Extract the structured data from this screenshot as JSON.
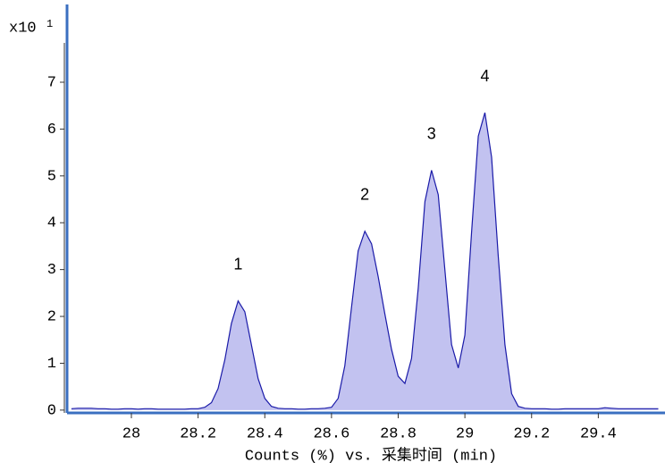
{
  "chart_data": {
    "type": "area",
    "y_multiplier": "x10",
    "y_exponent": "1",
    "xlabel": "Counts (%) vs. 采集时间 (min)",
    "peak_labels": [
      "1",
      "2",
      "3",
      "4"
    ],
    "x": [
      27.82,
      27.84,
      27.86,
      27.88,
      27.9,
      27.92,
      27.94,
      27.96,
      27.98,
      28.0,
      28.02,
      28.04,
      28.06,
      28.08,
      28.1,
      28.12,
      28.14,
      28.16,
      28.18,
      28.2,
      28.22,
      28.24,
      28.26,
      28.28,
      28.3,
      28.32,
      28.34,
      28.36,
      28.38,
      28.4,
      28.42,
      28.44,
      28.46,
      28.48,
      28.5,
      28.52,
      28.54,
      28.56,
      28.58,
      28.6,
      28.62,
      28.64,
      28.66,
      28.68,
      28.7,
      28.72,
      28.74,
      28.76,
      28.78,
      28.8,
      28.82,
      28.84,
      28.86,
      28.88,
      28.9,
      28.92,
      28.94,
      28.96,
      28.98,
      29.0,
      29.02,
      29.04,
      29.06,
      29.08,
      29.1,
      29.12,
      29.14,
      29.16,
      29.18,
      29.2,
      29.22,
      29.24,
      29.26,
      29.28,
      29.3,
      29.32,
      29.34,
      29.36,
      29.38,
      29.4,
      29.42,
      29.44,
      29.46,
      29.48,
      29.5,
      29.52,
      29.54,
      29.56,
      29.58
    ],
    "series": [
      {
        "color": "#1a1aa8",
        "fill": "#c2c2f0",
        "values": [
          0.03,
          0.04,
          0.04,
          0.04,
          0.03,
          0.03,
          0.02,
          0.02,
          0.03,
          0.03,
          0.02,
          0.03,
          0.03,
          0.02,
          0.02,
          0.02,
          0.02,
          0.02,
          0.03,
          0.03,
          0.06,
          0.16,
          0.46,
          1.07,
          1.85,
          2.33,
          2.1,
          1.39,
          0.67,
          0.25,
          0.08,
          0.04,
          0.03,
          0.03,
          0.02,
          0.02,
          0.03,
          0.03,
          0.04,
          0.06,
          0.25,
          0.95,
          2.2,
          3.4,
          3.82,
          3.55,
          2.85,
          2.05,
          1.3,
          0.72,
          0.57,
          1.1,
          2.6,
          4.45,
          5.12,
          4.6,
          3.0,
          1.4,
          0.9,
          1.6,
          3.8,
          5.85,
          6.35,
          5.4,
          3.3,
          1.4,
          0.35,
          0.08,
          0.04,
          0.03,
          0.03,
          0.03,
          0.02,
          0.02,
          0.03,
          0.03,
          0.03,
          0.03,
          0.03,
          0.03,
          0.05,
          0.04,
          0.03,
          0.03,
          0.03,
          0.03,
          0.03,
          0.03,
          0.03
        ]
      }
    ],
    "xlim": [
      27.807,
      29.6
    ],
    "ylim": [
      -0.06,
      8.66
    ],
    "xticks": [
      28,
      28.2,
      28.4,
      28.6,
      28.8,
      29,
      29.2,
      29.4
    ],
    "yticks": [
      0,
      1,
      2,
      3,
      4,
      5,
      6,
      7
    ],
    "axis_color": "#3a6fc0"
  }
}
